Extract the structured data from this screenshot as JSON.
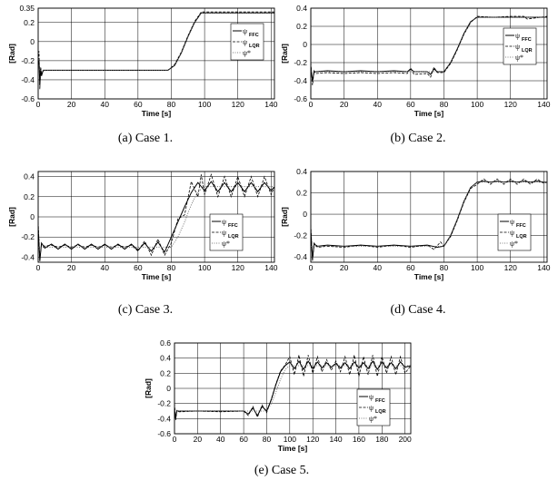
{
  "chart_data": [
    {
      "type": "line",
      "caption": "(a) Case 1.",
      "xlabel": "Time [s]",
      "ylabel": "[Rad]",
      "xlim": [
        0,
        142
      ],
      "ylim": [
        -0.6,
        0.35
      ],
      "xticks": [
        0,
        20,
        40,
        60,
        80,
        100,
        120,
        140
      ],
      "yticks": [
        -0.6,
        -0.4,
        -0.2,
        0,
        0.2,
        0.35
      ],
      "ytick_labels": [
        "-0.6",
        "-0.4",
        "-0.2",
        "0",
        "0.2",
        "0.35"
      ],
      "grid": true,
      "legend_position": "right",
      "legend": [
        {
          "symbol": "ψ",
          "sub": "FFC"
        },
        {
          "symbol": "ψ",
          "sub": "LQR"
        },
        {
          "symbol": "ψ*",
          "sub": ""
        }
      ],
      "series": [
        {
          "key": "ffc",
          "x": [
            0,
            0.5,
            1,
            1.5,
            2,
            3,
            5,
            20,
            40,
            60,
            78,
            82,
            86,
            90,
            94,
            98,
            100,
            110,
            120,
            130,
            142
          ],
          "y": [
            -0.24,
            -0.2,
            -0.46,
            -0.28,
            -0.36,
            -0.3,
            -0.3,
            -0.3,
            -0.3,
            -0.3,
            -0.3,
            -0.25,
            -0.12,
            0.05,
            0.2,
            0.3,
            0.3,
            0.3,
            0.3,
            0.3,
            0.3
          ]
        },
        {
          "key": "lqr",
          "x": [
            0,
            0.5,
            1,
            1.5,
            2,
            3,
            5,
            20,
            40,
            60,
            78,
            82,
            86,
            90,
            94,
            98,
            100,
            110,
            120,
            130,
            142
          ],
          "y": [
            -0.2,
            -0.1,
            -0.5,
            -0.27,
            -0.34,
            -0.31,
            -0.3,
            -0.3,
            -0.3,
            -0.3,
            -0.3,
            -0.24,
            -0.11,
            0.06,
            0.21,
            0.31,
            0.31,
            0.31,
            0.31,
            0.31,
            0.31
          ]
        },
        {
          "key": "ref",
          "x": [
            0,
            78,
            82,
            86,
            90,
            94,
            98,
            100,
            142
          ],
          "y": [
            -0.3,
            -0.3,
            -0.25,
            -0.12,
            0.05,
            0.2,
            0.3,
            0.3,
            0.3
          ]
        }
      ]
    },
    {
      "type": "line",
      "caption": "(b) Case 2.",
      "xlabel": "Time [s]",
      "ylabel": "[Rad]",
      "xlim": [
        0,
        142
      ],
      "ylim": [
        -0.6,
        0.4
      ],
      "xticks": [
        0,
        20,
        40,
        60,
        80,
        100,
        120,
        140
      ],
      "yticks": [
        -0.6,
        -0.4,
        -0.2,
        0,
        0.2,
        0.4
      ],
      "ytick_labels": [
        "-0.6",
        "-0.4",
        "-0.2",
        "0",
        "0.2",
        "0.4"
      ],
      "grid": true,
      "legend_position": "right",
      "legend": [
        {
          "symbol": "ψ",
          "sub": "FFC"
        },
        {
          "symbol": "ψ",
          "sub": "LQR"
        },
        {
          "symbol": "ψ*",
          "sub": ""
        }
      ],
      "series": [
        {
          "key": "ffc",
          "x": [
            0,
            1,
            2,
            3,
            10,
            20,
            30,
            40,
            50,
            58,
            60,
            62,
            70,
            72,
            74,
            76,
            80,
            84,
            88,
            92,
            96,
            100,
            110,
            120,
            128,
            130,
            142
          ],
          "y": [
            -0.25,
            -0.4,
            -0.3,
            -0.3,
            -0.29,
            -0.3,
            -0.29,
            -0.3,
            -0.29,
            -0.3,
            -0.27,
            -0.3,
            -0.3,
            -0.33,
            -0.27,
            -0.3,
            -0.3,
            -0.2,
            -0.05,
            0.12,
            0.25,
            0.3,
            0.3,
            0.3,
            0.3,
            0.3,
            0.3
          ]
        },
        {
          "key": "lqr",
          "x": [
            0,
            1,
            2,
            3,
            10,
            20,
            30,
            40,
            50,
            58,
            60,
            62,
            70,
            72,
            74,
            76,
            80,
            84,
            88,
            92,
            96,
            100,
            110,
            120,
            128,
            130,
            142
          ],
          "y": [
            -0.2,
            -0.45,
            -0.29,
            -0.32,
            -0.31,
            -0.32,
            -0.31,
            -0.32,
            -0.31,
            -0.32,
            -0.26,
            -0.33,
            -0.32,
            -0.36,
            -0.25,
            -0.31,
            -0.31,
            -0.21,
            -0.06,
            0.11,
            0.24,
            0.31,
            0.3,
            0.31,
            0.31,
            0.28,
            0.31
          ]
        },
        {
          "key": "ref",
          "x": [
            0,
            80,
            84,
            88,
            92,
            96,
            100,
            142
          ],
          "y": [
            -0.3,
            -0.3,
            -0.2,
            -0.05,
            0.12,
            0.25,
            0.3,
            0.3
          ]
        }
      ]
    },
    {
      "type": "line",
      "caption": "(c) Case 3.",
      "xlabel": "Time [s]",
      "ylabel": "[Rad]",
      "xlim": [
        0,
        142
      ],
      "ylim": [
        -0.45,
        0.45
      ],
      "xticks": [
        0,
        20,
        40,
        60,
        80,
        100,
        120,
        140
      ],
      "yticks": [
        -0.4,
        -0.2,
        0,
        0.2,
        0.4
      ],
      "ytick_labels": [
        "-0.4",
        "-0.2",
        "0",
        "0.2",
        "0.4"
      ],
      "grid": true,
      "legend_position": "right",
      "legend": [
        {
          "symbol": "ψ",
          "sub": "FFC"
        },
        {
          "symbol": "ψ",
          "sub": "LQR"
        },
        {
          "symbol": "ψ*",
          "sub": ""
        }
      ],
      "series": [
        {
          "key": "ffc",
          "x": [
            0,
            1,
            2,
            4,
            8,
            12,
            16,
            20,
            24,
            28,
            32,
            36,
            40,
            44,
            48,
            52,
            56,
            60,
            64,
            68,
            72,
            76,
            80,
            84,
            88,
            92,
            96,
            100,
            104,
            108,
            112,
            116,
            120,
            124,
            128,
            132,
            136,
            140,
            142
          ],
          "y": [
            -0.1,
            -0.44,
            -0.26,
            -0.31,
            -0.27,
            -0.32,
            -0.27,
            -0.32,
            -0.27,
            -0.32,
            -0.27,
            -0.32,
            -0.27,
            -0.32,
            -0.27,
            -0.32,
            -0.27,
            -0.33,
            -0.26,
            -0.34,
            -0.25,
            -0.35,
            -0.2,
            -0.05,
            0.1,
            0.24,
            0.34,
            0.26,
            0.35,
            0.25,
            0.34,
            0.25,
            0.34,
            0.25,
            0.34,
            0.25,
            0.34,
            0.26,
            0.3
          ]
        },
        {
          "key": "lqr",
          "x": [
            0,
            1,
            2,
            4,
            8,
            12,
            16,
            20,
            24,
            28,
            32,
            36,
            40,
            44,
            48,
            52,
            56,
            60,
            64,
            68,
            72,
            76,
            80,
            84,
            88,
            92,
            96,
            98,
            100,
            104,
            108,
            112,
            116,
            120,
            124,
            128,
            132,
            136,
            140,
            142
          ],
          "y": [
            -0.05,
            -0.42,
            -0.28,
            -0.29,
            -0.28,
            -0.3,
            -0.28,
            -0.3,
            -0.28,
            -0.3,
            -0.28,
            -0.3,
            -0.28,
            -0.3,
            -0.28,
            -0.3,
            -0.28,
            -0.34,
            -0.24,
            -0.38,
            -0.22,
            -0.38,
            -0.26,
            -0.02,
            0.02,
            0.35,
            0.2,
            0.42,
            0.22,
            0.42,
            0.2,
            0.4,
            0.2,
            0.4,
            0.2,
            0.4,
            0.2,
            0.4,
            0.22,
            0.3
          ]
        },
        {
          "key": "ref",
          "x": [
            0,
            80,
            84,
            88,
            92,
            96,
            100,
            142
          ],
          "y": [
            -0.3,
            -0.3,
            -0.2,
            -0.05,
            0.12,
            0.25,
            0.3,
            0.3
          ]
        }
      ]
    },
    {
      "type": "line",
      "caption": "(d) Case 4.",
      "xlabel": "Time [s]",
      "ylabel": "[Rad]",
      "xlim": [
        0,
        142
      ],
      "ylim": [
        -0.45,
        0.4
      ],
      "xticks": [
        0,
        20,
        40,
        60,
        80,
        100,
        120,
        140
      ],
      "yticks": [
        -0.4,
        -0.2,
        0,
        0.2,
        0.4
      ],
      "ytick_labels": [
        "-0.4",
        "-0.2",
        "0",
        "0.2",
        "0.4"
      ],
      "grid": true,
      "legend_position": "right",
      "legend": [
        {
          "symbol": "ψ",
          "sub": "FFC"
        },
        {
          "symbol": "ψ",
          "sub": "LQR"
        },
        {
          "symbol": "ψ*",
          "sub": ""
        }
      ],
      "series": [
        {
          "key": "ffc",
          "x": [
            0,
            1,
            2,
            4,
            10,
            20,
            30,
            40,
            50,
            60,
            70,
            76,
            80,
            84,
            88,
            92,
            96,
            100,
            104,
            108,
            112,
            116,
            120,
            124,
            128,
            132,
            136,
            140,
            142
          ],
          "y": [
            -0.15,
            -0.42,
            -0.28,
            -0.3,
            -0.29,
            -0.3,
            -0.29,
            -0.3,
            -0.29,
            -0.3,
            -0.29,
            -0.31,
            -0.3,
            -0.2,
            -0.05,
            0.12,
            0.25,
            0.3,
            0.31,
            0.3,
            0.31,
            0.3,
            0.31,
            0.3,
            0.31,
            0.3,
            0.31,
            0.3,
            0.3
          ]
        },
        {
          "key": "lqr",
          "x": [
            0,
            1,
            2,
            4,
            10,
            20,
            30,
            40,
            50,
            60,
            70,
            74,
            78,
            80,
            84,
            88,
            92,
            96,
            100,
            104,
            108,
            112,
            116,
            120,
            124,
            128,
            132,
            136,
            140,
            142
          ],
          "y": [
            -0.1,
            -0.44,
            -0.27,
            -0.31,
            -0.3,
            -0.31,
            -0.29,
            -0.31,
            -0.29,
            -0.31,
            -0.29,
            -0.33,
            -0.26,
            -0.3,
            -0.21,
            -0.06,
            0.11,
            0.24,
            0.28,
            0.33,
            0.28,
            0.33,
            0.28,
            0.33,
            0.28,
            0.33,
            0.28,
            0.33,
            0.29,
            0.3
          ]
        },
        {
          "key": "ref",
          "x": [
            0,
            80,
            84,
            88,
            92,
            96,
            100,
            142
          ],
          "y": [
            -0.3,
            -0.3,
            -0.2,
            -0.05,
            0.12,
            0.25,
            0.3,
            0.3
          ]
        }
      ]
    },
    {
      "type": "line",
      "caption": "(e) Case 5.",
      "xlabel": "Time [s]",
      "ylabel": "[Rad]",
      "xlim": [
        0,
        205
      ],
      "ylim": [
        -0.6,
        0.6
      ],
      "xticks": [
        0,
        20,
        40,
        60,
        80,
        100,
        120,
        140,
        160,
        180,
        200
      ],
      "yticks": [
        -0.6,
        -0.4,
        -0.2,
        0,
        0.2,
        0.4,
        0.6
      ],
      "ytick_labels": [
        "-0.6",
        "-0.4",
        "-0.2",
        "0",
        "0.2",
        "0.4",
        "0.6"
      ],
      "grid": true,
      "legend_position": "right",
      "legend": [
        {
          "symbol": "ψ",
          "sub": "FFC"
        },
        {
          "symbol": "ψ",
          "sub": "LQR"
        },
        {
          "symbol": "ψ*",
          "sub": ""
        }
      ],
      "series": [
        {
          "key": "ffc",
          "x": [
            0,
            1,
            2,
            4,
            20,
            40,
            60,
            64,
            68,
            72,
            76,
            80,
            84,
            88,
            92,
            96,
            100,
            104,
            108,
            112,
            116,
            120,
            124,
            128,
            132,
            136,
            140,
            144,
            148,
            152,
            156,
            160,
            164,
            168,
            172,
            176,
            180,
            184,
            188,
            192,
            196,
            200,
            205
          ],
          "y": [
            -0.25,
            -0.4,
            -0.3,
            -0.3,
            -0.3,
            -0.3,
            -0.3,
            -0.34,
            -0.26,
            -0.36,
            -0.24,
            -0.3,
            -0.15,
            0.05,
            0.22,
            0.3,
            0.35,
            0.26,
            0.36,
            0.25,
            0.36,
            0.26,
            0.35,
            0.27,
            0.34,
            0.28,
            0.33,
            0.27,
            0.34,
            0.26,
            0.35,
            0.27,
            0.34,
            0.26,
            0.36,
            0.25,
            0.35,
            0.27,
            0.34,
            0.26,
            0.35,
            0.28,
            0.3
          ]
        },
        {
          "key": "lqr",
          "x": [
            0,
            1,
            2,
            4,
            20,
            40,
            60,
            64,
            68,
            72,
            76,
            80,
            84,
            88,
            92,
            96,
            100,
            104,
            108,
            112,
            116,
            120,
            124,
            128,
            132,
            136,
            140,
            144,
            148,
            152,
            156,
            160,
            164,
            168,
            172,
            176,
            180,
            184,
            188,
            192,
            196,
            200,
            205
          ],
          "y": [
            -0.2,
            -0.42,
            -0.29,
            -0.31,
            -0.3,
            -0.31,
            -0.3,
            -0.36,
            -0.24,
            -0.38,
            -0.22,
            -0.32,
            -0.14,
            0.06,
            0.23,
            0.31,
            0.42,
            0.18,
            0.44,
            0.16,
            0.44,
            0.2,
            0.42,
            0.22,
            0.38,
            0.24,
            0.36,
            0.22,
            0.42,
            0.18,
            0.44,
            0.16,
            0.42,
            0.18,
            0.44,
            0.16,
            0.42,
            0.2,
            0.42,
            0.18,
            0.42,
            0.2,
            0.3
          ]
        },
        {
          "key": "ref",
          "x": [
            0,
            80,
            84,
            88,
            92,
            96,
            100,
            205
          ],
          "y": [
            -0.3,
            -0.3,
            -0.2,
            -0.05,
            0.12,
            0.25,
            0.3,
            0.3
          ]
        }
      ]
    }
  ]
}
